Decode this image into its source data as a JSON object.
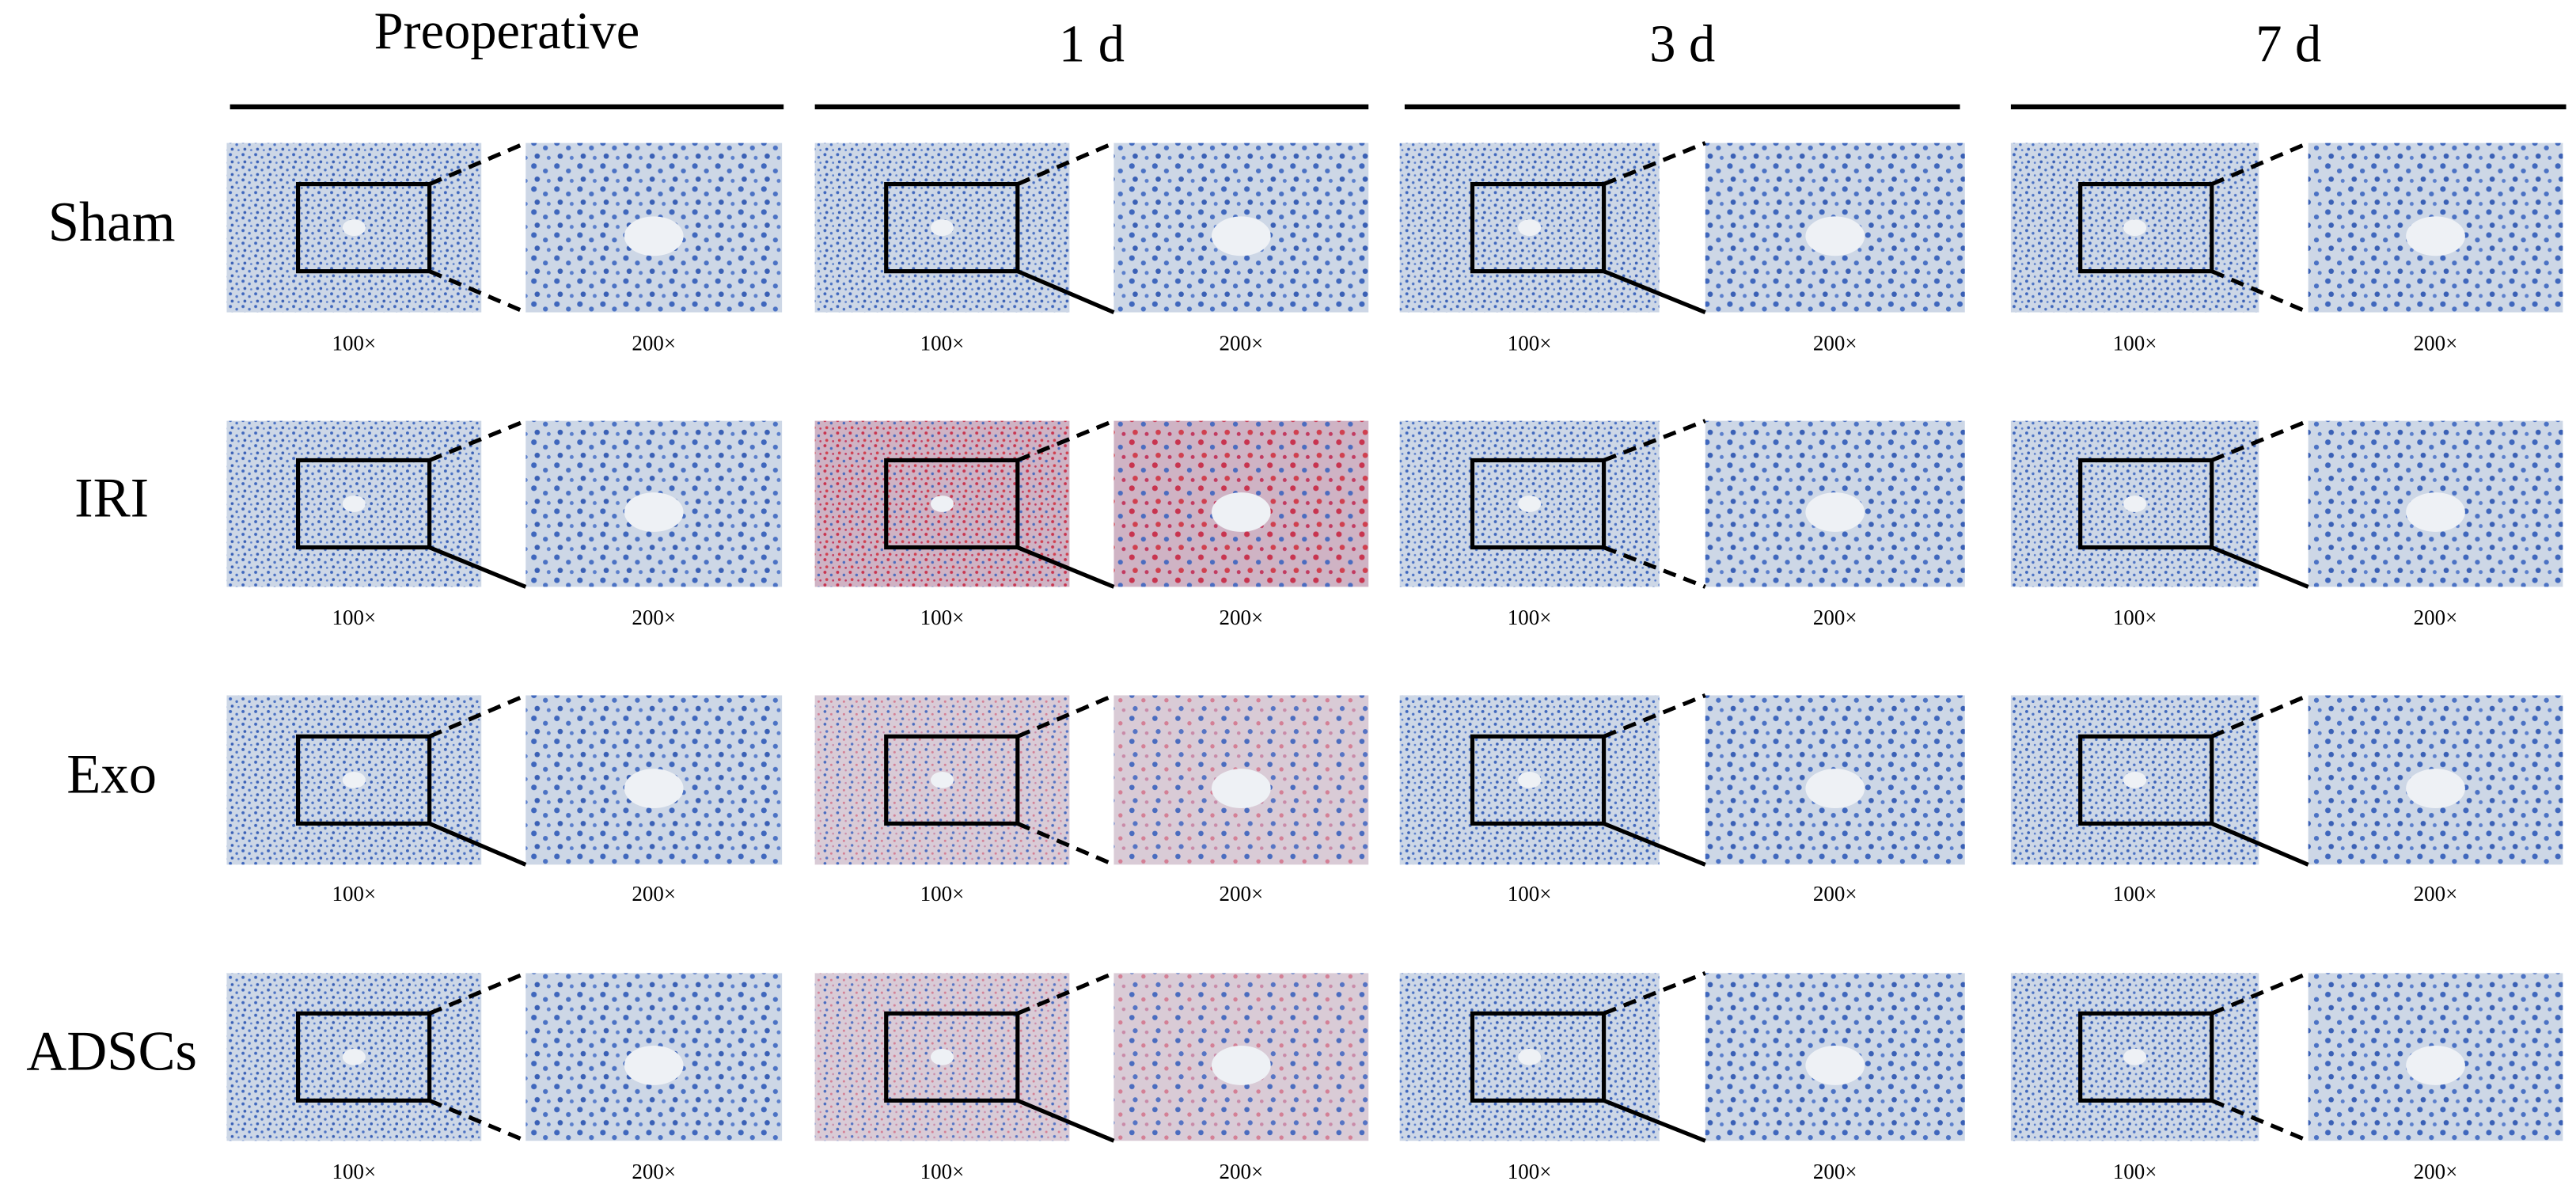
{
  "columns": [
    "Preoperative",
    "1 d",
    "3 d",
    "7 d"
  ],
  "rows": [
    {
      "label": "Sham",
      "cells": [
        [
          "100×",
          "200×"
        ],
        [
          "100×",
          "200×"
        ],
        [
          "100×",
          "200×"
        ],
        [
          "100×",
          "200×"
        ]
      ]
    },
    {
      "label": "IRI",
      "cells": [
        [
          "100×",
          "200×"
        ],
        [
          "100×",
          "200×"
        ],
        [
          "100×",
          "200×"
        ],
        [
          "100×",
          "200×"
        ]
      ]
    },
    {
      "label": "Exo",
      "cells": [
        [
          "100×",
          "200×"
        ],
        [
          "100×",
          "200×"
        ],
        [
          "100×",
          "200×"
        ],
        [
          "100×",
          "200×"
        ]
      ]
    },
    {
      "label": "ADSCs",
      "cells": [
        [
          "100×",
          "200×"
        ],
        [
          "100×",
          "200×"
        ],
        [
          "100×",
          "200×"
        ],
        [
          "100×",
          "200×"
        ]
      ]
    }
  ]
}
